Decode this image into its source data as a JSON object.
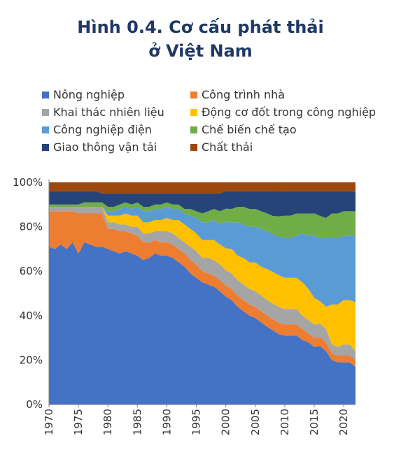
{
  "title_line1": "Hình 0.4. Cơ cấu phát thải",
  "title_line2": "ở Việt Nam",
  "chart_data": {
    "type": "area",
    "stacked": true,
    "normalized": true,
    "x": [
      1970,
      1971,
      1972,
      1973,
      1974,
      1975,
      1976,
      1977,
      1978,
      1979,
      1980,
      1981,
      1982,
      1983,
      1984,
      1985,
      1986,
      1987,
      1988,
      1989,
      1990,
      1991,
      1992,
      1993,
      1994,
      1995,
      1996,
      1997,
      1998,
      1999,
      2000,
      2001,
      2002,
      2003,
      2004,
      2005,
      2006,
      2007,
      2008,
      2009,
      2010,
      2011,
      2012,
      2013,
      2014,
      2015,
      2016,
      2017,
      2018,
      2019,
      2020,
      2021,
      2022
    ],
    "x_ticks": [
      "1970",
      "1975",
      "1980",
      "1985",
      "1990",
      "1995",
      "2000",
      "2005",
      "2010",
      "2015",
      "2020"
    ],
    "x_tick_values": [
      1970,
      1975,
      1980,
      1985,
      1990,
      1995,
      2000,
      2005,
      2010,
      2015,
      2020
    ],
    "y_ticks": [
      "0%",
      "20%",
      "40%",
      "60%",
      "80%",
      "100%"
    ],
    "ylim": [
      0,
      100
    ],
    "legend_position": "top",
    "series": [
      {
        "name": "Nông nghiệp",
        "color": "#4472c4",
        "values": [
          71,
          70,
          72,
          70,
          73,
          68,
          73,
          72,
          71,
          71,
          70,
          69,
          68,
          69,
          68,
          67,
          65,
          66,
          68,
          67,
          67,
          66,
          64,
          62,
          59,
          57,
          55,
          54,
          53,
          51,
          49,
          47,
          44,
          42,
          40,
          39,
          37,
          35,
          33,
          31,
          31,
          31,
          31,
          29,
          28,
          26,
          26,
          24,
          20,
          19,
          19,
          19,
          17
        ]
      },
      {
        "name": "Chất thải",
        "color": "#9e480e",
        "values": [
          4,
          4,
          4,
          4,
          4,
          4,
          4,
          4,
          4,
          5,
          5,
          5,
          5,
          5,
          5,
          5,
          5,
          5,
          5,
          5,
          5,
          5,
          5,
          5,
          5,
          5,
          5,
          5,
          5,
          5,
          4,
          4,
          4,
          4,
          4,
          4,
          4,
          4,
          4,
          4,
          4,
          4,
          4,
          4,
          4,
          4,
          4,
          4,
          4,
          4,
          4,
          4,
          4
        ]
      }
    ],
    "stack": [
      {
        "name": "Nông nghiệp",
        "color": "#4472c4",
        "values": [
          71,
          70,
          72,
          70,
          73,
          68,
          73,
          72,
          71,
          71,
          70,
          69,
          68,
          69,
          68,
          67,
          65,
          66,
          68,
          67,
          67,
          66,
          64,
          62,
          59,
          57,
          55,
          54,
          53,
          51,
          49,
          47,
          44,
          42,
          40,
          39,
          37,
          35,
          33,
          31,
          31,
          31,
          31,
          29,
          28,
          26,
          26,
          24,
          20,
          19,
          19,
          19,
          17
        ]
      },
      {
        "name": "Công trình nhà",
        "color": "#ed7d31",
        "values": [
          16,
          17,
          15,
          17,
          14,
          18,
          13,
          14,
          15,
          15,
          9,
          10,
          10,
          9,
          9,
          9,
          8,
          7,
          6,
          6,
          6,
          6,
          6,
          6,
          6,
          6,
          5,
          5,
          5,
          5,
          5,
          5,
          5,
          5,
          5,
          5,
          5,
          5,
          5,
          5,
          5,
          5,
          5,
          5,
          4,
          4,
          4,
          4,
          3,
          3,
          3,
          3,
          3
        ]
      },
      {
        "name": "Khai thác nhiên liệu",
        "color": "#a5a5a5",
        "values": [
          2,
          2,
          2,
          2,
          2,
          3,
          3,
          3,
          3,
          3,
          3,
          3,
          3,
          3,
          3,
          4,
          4,
          4,
          4,
          5,
          5,
          5,
          5,
          5,
          6,
          6,
          6,
          7,
          7,
          7,
          7,
          7,
          7,
          7,
          7,
          7,
          7,
          7,
          7,
          7,
          7,
          7,
          7,
          6,
          6,
          6,
          6,
          6,
          4,
          4,
          5,
          5,
          4
        ]
      },
      {
        "name": "Động cơ đốt trong công nghiệp",
        "color": "#ffc000",
        "values": [
          0,
          0,
          0,
          0,
          0,
          0,
          0,
          0,
          0,
          0,
          3,
          3,
          4,
          5,
          5,
          5,
          5,
          5,
          5,
          5,
          6,
          6,
          8,
          8,
          8,
          8,
          8,
          8,
          9,
          9,
          10,
          11,
          11,
          12,
          12,
          13,
          13,
          14,
          14,
          14,
          14,
          14,
          14,
          15,
          14,
          12,
          10,
          10,
          18,
          19,
          20,
          20,
          22
        ]
      },
      {
        "name": "Công nghiệp điện",
        "color": "#5b9bd5",
        "values": [
          0,
          0,
          0,
          0,
          0,
          0,
          0,
          0,
          0,
          0,
          2,
          2,
          3,
          3,
          3,
          4,
          5,
          5,
          5,
          5,
          5,
          5,
          5,
          5,
          6,
          7,
          8,
          8,
          9,
          9,
          12,
          12,
          15,
          15,
          16,
          16,
          17,
          17,
          17,
          17,
          18,
          18,
          19,
          22,
          24,
          28,
          28,
          31,
          30,
          30,
          29,
          29,
          30
        ]
      },
      {
        "name": "Chế biến chế tạo",
        "color": "#70ad47",
        "values": [
          1,
          1,
          1,
          1,
          1,
          1,
          2,
          2,
          2,
          2,
          2,
          2,
          2,
          2,
          2,
          2,
          2,
          2,
          2,
          2,
          2,
          2,
          2,
          2,
          3,
          3,
          4,
          5,
          5,
          6,
          6,
          6,
          7,
          8,
          8,
          8,
          8,
          8,
          8,
          9,
          10,
          10,
          10,
          9,
          10,
          10,
          10,
          9,
          11,
          11,
          11,
          11,
          11
        ]
      },
      {
        "name": "Giao thông vận tải",
        "color": "#264478",
        "values": [
          6,
          6,
          6,
          6,
          6,
          6,
          5,
          5,
          5,
          4,
          6,
          6,
          5,
          4,
          5,
          4,
          6,
          6,
          5,
          5,
          4,
          5,
          5,
          7,
          7,
          8,
          9,
          8,
          7,
          8,
          8,
          8,
          7,
          7,
          8,
          8,
          9,
          10,
          11,
          11,
          11,
          11,
          10,
          10,
          10,
          10,
          11,
          12,
          10,
          10,
          9,
          9,
          9
        ]
      },
      {
        "name": "Chất thải",
        "color": "#9e480e",
        "values": [
          4,
          4,
          4,
          4,
          4,
          4,
          4,
          4,
          4,
          5,
          5,
          5,
          5,
          5,
          5,
          5,
          5,
          5,
          5,
          5,
          5,
          5,
          5,
          5,
          5,
          5,
          5,
          5,
          5,
          5,
          4,
          4,
          4,
          4,
          4,
          4,
          4,
          4,
          4,
          4,
          4,
          4,
          4,
          4,
          4,
          4,
          4,
          4,
          4,
          4,
          4,
          4,
          4
        ]
      }
    ],
    "legend": [
      {
        "label": "Nông nghiệp",
        "color": "#4472c4"
      },
      {
        "label": "Công trình nhà",
        "color": "#ed7d31"
      },
      {
        "label": "Khai thác nhiên liệu",
        "color": "#a5a5a5"
      },
      {
        "label": "Động cơ đốt trong công nghiệp",
        "color": "#ffc000"
      },
      {
        "label": "Công nghiệp điện",
        "color": "#5b9bd5"
      },
      {
        "label": "Chế biến chế tạo",
        "color": "#70ad47"
      },
      {
        "label": "Giao thông vận tải",
        "color": "#264478"
      },
      {
        "label": "Chất thải",
        "color": "#9e480e"
      }
    ]
  }
}
